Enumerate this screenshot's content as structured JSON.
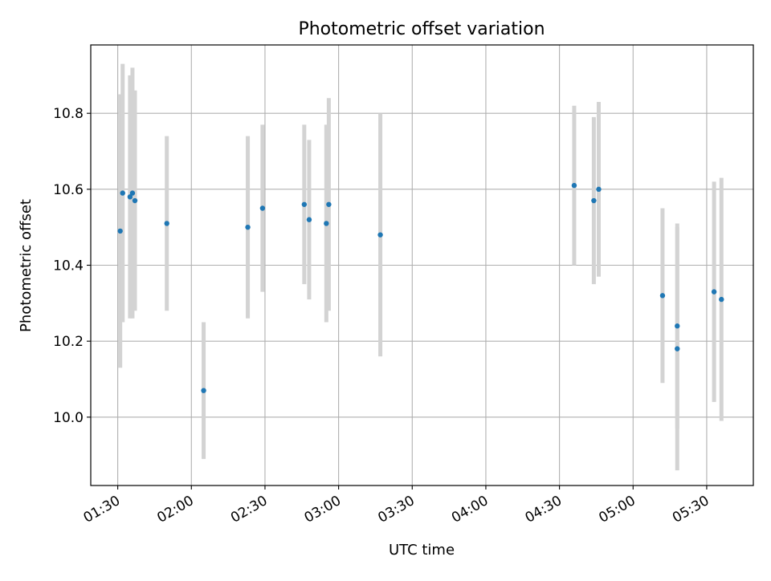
{
  "chart_data": {
    "type": "scatter",
    "title": "Photometric offset variation",
    "xlabel": "UTC time",
    "ylabel": "Photometric offset",
    "x_tick_labels": [
      "01:30",
      "02:00",
      "02:30",
      "03:00",
      "03:30",
      "04:00",
      "04:30",
      "05:00",
      "05:30"
    ],
    "y_tick_labels": [
      "10.0",
      "10.2",
      "10.4",
      "10.6",
      "10.8"
    ],
    "y_ticks": [
      10.0,
      10.2,
      10.4,
      10.6,
      10.8
    ],
    "xlim": [
      "01:19",
      "05:49"
    ],
    "ylim": [
      9.82,
      10.98
    ],
    "grid": true,
    "colors": {
      "point": "#1f77b4",
      "errorbar": "#d3d3d3",
      "grid": "#b0b0b0"
    },
    "points": [
      {
        "x": "01:31",
        "y": 10.49,
        "yerr": 0.36
      },
      {
        "x": "01:32",
        "y": 10.59,
        "yerr": 0.34
      },
      {
        "x": "01:35",
        "y": 10.58,
        "yerr": 0.32
      },
      {
        "x": "01:36",
        "y": 10.59,
        "yerr": 0.33
      },
      {
        "x": "01:37",
        "y": 10.57,
        "yerr": 0.29
      },
      {
        "x": "01:50",
        "y": 10.51,
        "yerr": 0.23
      },
      {
        "x": "02:05",
        "y": 10.07,
        "yerr": 0.18
      },
      {
        "x": "02:23",
        "y": 10.5,
        "yerr": 0.24
      },
      {
        "x": "02:29",
        "y": 10.55,
        "yerr": 0.22
      },
      {
        "x": "02:46",
        "y": 10.56,
        "yerr": 0.21
      },
      {
        "x": "02:48",
        "y": 10.52,
        "yerr": 0.21
      },
      {
        "x": "02:55",
        "y": 10.51,
        "yerr": 0.26
      },
      {
        "x": "02:56",
        "y": 10.56,
        "yerr": 0.28
      },
      {
        "x": "03:17",
        "y": 10.48,
        "yerr": 0.32
      },
      {
        "x": "04:36",
        "y": 10.61,
        "yerr": 0.21
      },
      {
        "x": "04:44",
        "y": 10.57,
        "yerr": 0.22
      },
      {
        "x": "04:46",
        "y": 10.6,
        "yerr": 0.23
      },
      {
        "x": "05:12",
        "y": 10.32,
        "yerr": 0.23
      },
      {
        "x": "05:18",
        "y": 10.18,
        "yerr": 0.32
      },
      {
        "x": "05:18",
        "y": 10.24,
        "yerr": 0.27
      },
      {
        "x": "05:33",
        "y": 10.33,
        "yerr": 0.29
      },
      {
        "x": "05:36",
        "y": 10.31,
        "yerr": 0.32
      }
    ]
  }
}
